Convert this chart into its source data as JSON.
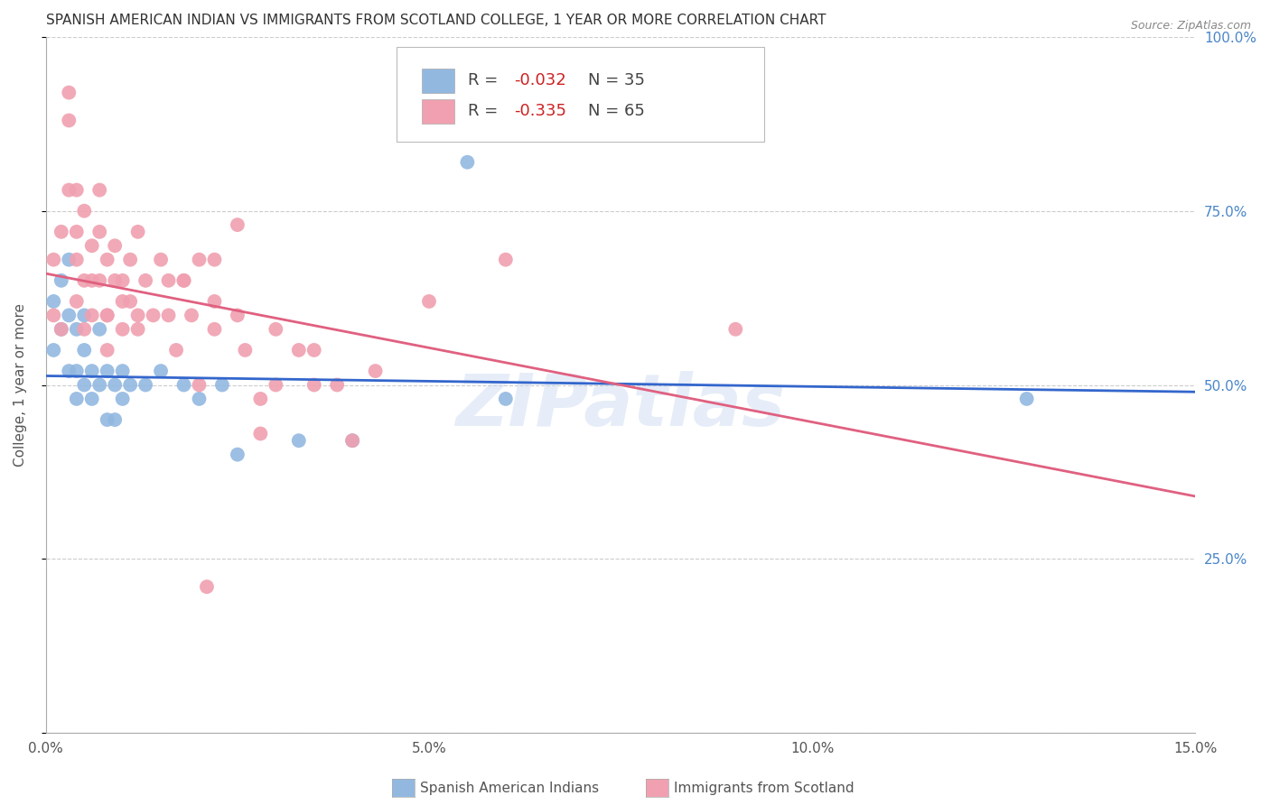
{
  "title": "SPANISH AMERICAN INDIAN VS IMMIGRANTS FROM SCOTLAND COLLEGE, 1 YEAR OR MORE CORRELATION CHART",
  "source": "Source: ZipAtlas.com",
  "ylabel_label": "College, 1 year or more",
  "legend_blue_r": "-0.032",
  "legend_blue_n": "35",
  "legend_pink_r": "-0.335",
  "legend_pink_n": "65",
  "legend_label_blue": "Spanish American Indians",
  "legend_label_pink": "Immigrants from Scotland",
  "xlim": [
    0.0,
    0.15
  ],
  "ylim": [
    0.0,
    1.0
  ],
  "blue_color": "#92b8e0",
  "pink_color": "#f0a0b0",
  "blue_line_color": "#3366cc",
  "pink_line_color": "#e06080",
  "watermark": "ZIPatlas",
  "background_color": "#ffffff",
  "grid_color": "#cccccc",
  "right_axis_color": "#4a86c8",
  "blue_line_x0": 0.0,
  "blue_line_x1": 0.15,
  "blue_line_y0": 0.513,
  "blue_line_y1": 0.49,
  "pink_line_x0": 0.0,
  "pink_line_x1": 0.15,
  "pink_line_y0": 0.66,
  "pink_line_y1": 0.34,
  "blue_points_x": [
    0.001,
    0.001,
    0.002,
    0.002,
    0.003,
    0.003,
    0.003,
    0.004,
    0.004,
    0.004,
    0.005,
    0.005,
    0.005,
    0.006,
    0.006,
    0.007,
    0.007,
    0.008,
    0.008,
    0.009,
    0.009,
    0.01,
    0.01,
    0.011,
    0.013,
    0.015,
    0.018,
    0.02,
    0.023,
    0.025,
    0.033,
    0.04,
    0.055,
    0.06,
    0.128
  ],
  "blue_points_y": [
    0.62,
    0.55,
    0.65,
    0.58,
    0.68,
    0.6,
    0.52,
    0.58,
    0.52,
    0.48,
    0.55,
    0.6,
    0.5,
    0.52,
    0.48,
    0.58,
    0.5,
    0.52,
    0.45,
    0.5,
    0.45,
    0.52,
    0.48,
    0.5,
    0.5,
    0.52,
    0.5,
    0.48,
    0.5,
    0.4,
    0.42,
    0.42,
    0.82,
    0.48,
    0.48
  ],
  "pink_points_x": [
    0.001,
    0.001,
    0.002,
    0.002,
    0.003,
    0.003,
    0.003,
    0.004,
    0.004,
    0.004,
    0.004,
    0.005,
    0.005,
    0.005,
    0.006,
    0.006,
    0.006,
    0.007,
    0.007,
    0.007,
    0.008,
    0.008,
    0.008,
    0.009,
    0.009,
    0.01,
    0.01,
    0.01,
    0.011,
    0.011,
    0.012,
    0.012,
    0.013,
    0.014,
    0.015,
    0.016,
    0.017,
    0.018,
    0.019,
    0.02,
    0.022,
    0.025,
    0.026,
    0.028,
    0.03,
    0.033,
    0.035,
    0.038,
    0.04,
    0.043,
    0.02,
    0.03,
    0.028,
    0.035,
    0.06,
    0.05,
    0.018,
    0.025,
    0.022,
    0.012,
    0.016,
    0.008,
    0.022,
    0.09,
    0.021
  ],
  "pink_points_y": [
    0.68,
    0.6,
    0.72,
    0.58,
    0.88,
    0.92,
    0.78,
    0.68,
    0.62,
    0.78,
    0.72,
    0.65,
    0.75,
    0.58,
    0.7,
    0.65,
    0.6,
    0.78,
    0.72,
    0.65,
    0.68,
    0.6,
    0.55,
    0.7,
    0.65,
    0.62,
    0.58,
    0.65,
    0.68,
    0.62,
    0.72,
    0.58,
    0.65,
    0.6,
    0.68,
    0.6,
    0.55,
    0.65,
    0.6,
    0.5,
    0.62,
    0.6,
    0.55,
    0.48,
    0.58,
    0.55,
    0.5,
    0.5,
    0.42,
    0.52,
    0.68,
    0.5,
    0.43,
    0.55,
    0.68,
    0.62,
    0.65,
    0.73,
    0.68,
    0.6,
    0.65,
    0.6,
    0.58,
    0.58,
    0.21
  ]
}
